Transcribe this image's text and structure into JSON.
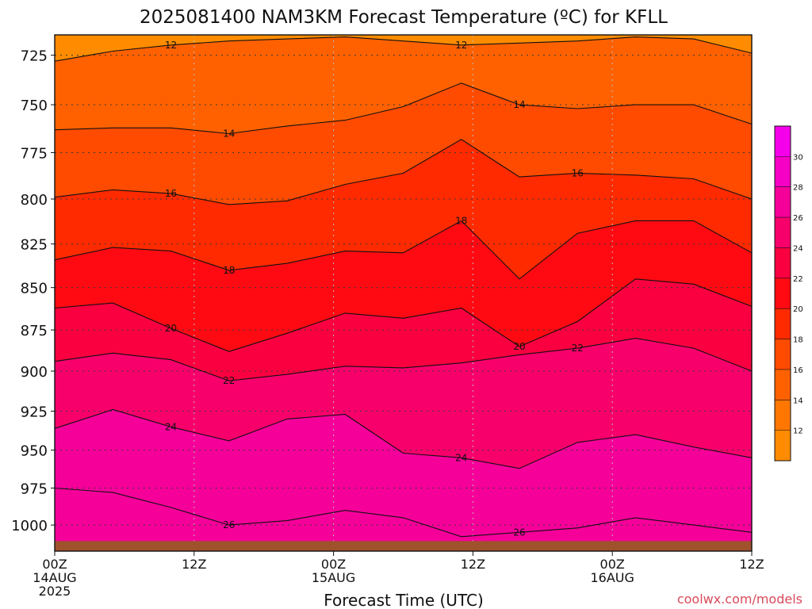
{
  "chart_data": {
    "type": "heatmap",
    "title": "2025081400 NAM3KM Forecast Temperature (ºC) for KFLL",
    "xlabel": "Forecast Time (UTC)",
    "ylabel": "",
    "x_range_hours": [
      0,
      60
    ],
    "y_range_hpa": [
      1018,
      715
    ],
    "y_ticks": [
      725,
      750,
      775,
      800,
      825,
      850,
      875,
      900,
      925,
      950,
      975,
      1000
    ],
    "x_ticks": [
      {
        "hour": 0,
        "lines": [
          "00Z",
          "14AUG",
          "2025"
        ]
      },
      {
        "hour": 12,
        "lines": [
          "12Z"
        ]
      },
      {
        "hour": 24,
        "lines": [
          "00Z",
          "15AUG"
        ]
      },
      {
        "hour": 36,
        "lines": [
          "12Z"
        ]
      },
      {
        "hour": 48,
        "lines": [
          "00Z",
          "16AUG"
        ]
      },
      {
        "hour": 60,
        "lines": [
          "12Z"
        ]
      }
    ],
    "grid": true,
    "colorbar": {
      "position": "right",
      "levels": [
        10,
        12,
        14,
        16,
        18,
        20,
        22,
        24,
        26,
        28,
        30,
        32
      ],
      "tick_labels": [
        "12",
        "14",
        "16",
        "18",
        "20",
        "22",
        "24",
        "26",
        "28",
        "30"
      ],
      "colors": [
        "#ff8c00",
        "#ff7700",
        "#ff6100",
        "#ff4b00",
        "#ff2a00",
        "#ff0a12",
        "#fa0040",
        "#f8006c",
        "#f6009a",
        "#f500c4",
        "#f600ec"
      ]
    },
    "isotherms": [
      {
        "level": 12,
        "label": "12",
        "pressures": [
          728,
          723,
          720,
          718,
          717,
          716,
          718,
          720,
          719,
          718,
          716,
          717,
          724
        ]
      },
      {
        "level": 14,
        "label": "14",
        "pressures": [
          763,
          762,
          762,
          765,
          761,
          758,
          751,
          739,
          750,
          752,
          750,
          750,
          760
        ]
      },
      {
        "level": 16,
        "label": "16",
        "pressures": [
          799,
          795,
          797,
          803,
          801,
          792,
          786,
          768,
          788,
          786,
          787,
          789,
          800
        ]
      },
      {
        "level": 18,
        "label": "18",
        "pressures": [
          834,
          827,
          829,
          840,
          836,
          829,
          830,
          812,
          845,
          819,
          812,
          812,
          830
        ]
      },
      {
        "level": 20,
        "label": "20",
        "pressures": [
          862,
          859,
          874,
          888,
          877,
          865,
          868,
          862,
          885,
          870,
          845,
          848,
          861
        ]
      },
      {
        "level": 22,
        "label": "22",
        "pressures": [
          894,
          889,
          893,
          906,
          902,
          897,
          898,
          895,
          890,
          886,
          880,
          886,
          900
        ]
      },
      {
        "level": 24,
        "label": "24",
        "pressures": [
          936,
          924,
          935,
          944,
          930,
          927,
          952,
          955,
          962,
          945,
          940,
          948,
          955
        ]
      },
      {
        "level": 26,
        "label": "26",
        "pressures": [
          975,
          978,
          988,
          1000,
          997,
          990,
          995,
          1008,
          1005,
          1002,
          995,
          1000,
          1005
        ]
      }
    ],
    "surface_band_hpa": [
      1011,
      1018
    ]
  },
  "credit": "coolwx.com/models"
}
